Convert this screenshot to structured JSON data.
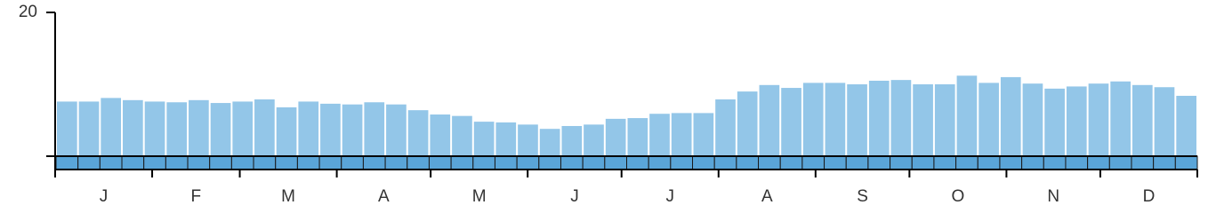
{
  "chart_data": {
    "type": "bar",
    "values": [
      7.6,
      7.6,
      8.1,
      7.8,
      7.6,
      7.5,
      7.8,
      7.4,
      7.6,
      7.9,
      6.8,
      7.6,
      7.3,
      7.2,
      7.5,
      7.2,
      6.4,
      5.8,
      5.6,
      4.8,
      4.7,
      4.4,
      3.8,
      4.2,
      4.4,
      5.2,
      5.3,
      5.9,
      6.0,
      6.0,
      7.9,
      9.0,
      9.9,
      9.5,
      10.2,
      10.2,
      10.0,
      10.5,
      10.6,
      10.0,
      10.0,
      11.2,
      10.2,
      11.0,
      10.1,
      9.4,
      9.7,
      10.1,
      10.4,
      9.9,
      9.6,
      8.4
    ],
    "color": "#93c6e8",
    "month_labels": [
      "J",
      "F",
      "M",
      "A",
      "M",
      "J",
      "J",
      "A",
      "S",
      "O",
      "N",
      "D"
    ],
    "ylim": [
      0,
      20
    ],
    "yticks": [
      20
    ]
  }
}
